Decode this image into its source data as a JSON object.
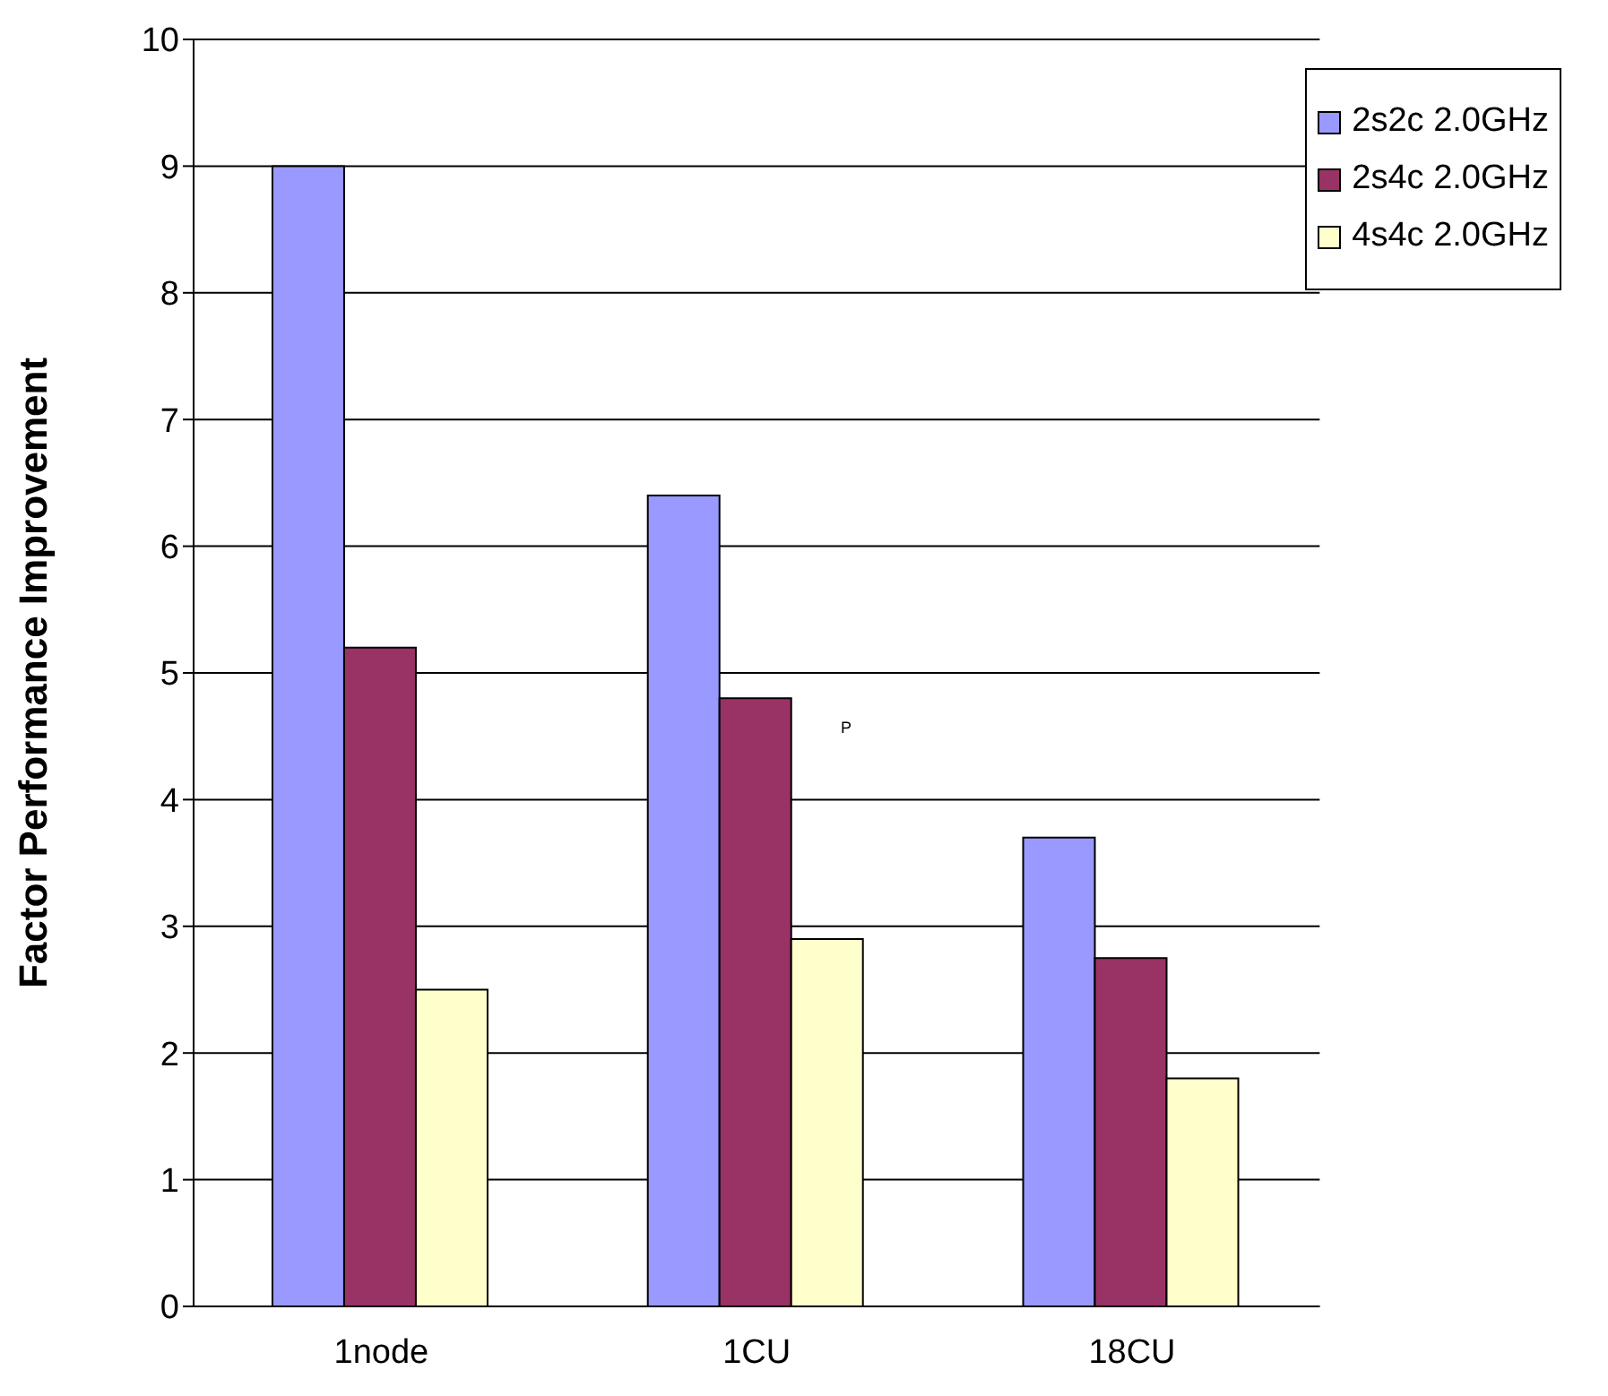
{
  "chart_data": {
    "type": "bar",
    "ylabel": "Factor Performance Improvement",
    "categories": [
      "1node",
      "1CU",
      "18CU"
    ],
    "series": [
      {
        "name": "2s2c 2.0GHz",
        "color": "#9999ff",
        "values": [
          9.0,
          6.4,
          3.7
        ]
      },
      {
        "name": "2s4c 2.0GHz",
        "color": "#993366",
        "values": [
          5.2,
          4.8,
          2.75
        ]
      },
      {
        "name": "4s4c 2.0GHz",
        "color": "#ffffcc",
        "values": [
          2.5,
          2.9,
          1.8
        ]
      }
    ],
    "ylim": [
      0,
      10
    ],
    "yticks": [
      0,
      1,
      2,
      3,
      4,
      5,
      6,
      7,
      8,
      9,
      10
    ],
    "grid": "y",
    "legend": "top right",
    "annotations": [
      "P"
    ]
  }
}
